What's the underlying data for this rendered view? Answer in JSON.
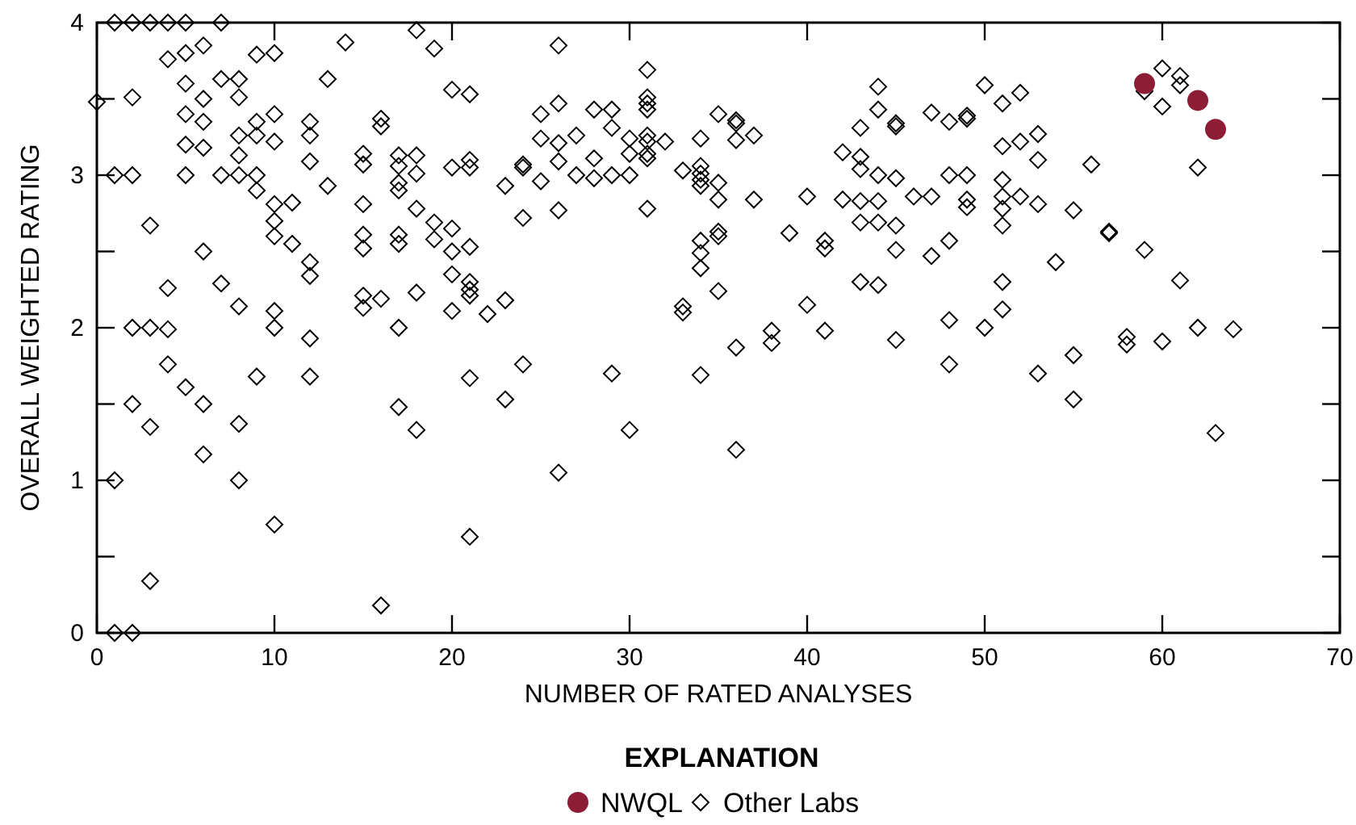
{
  "chart_data": {
    "type": "scatter",
    "xlabel": "NUMBER OF RATED ANALYSES",
    "ylabel": "OVERALL WEIGHTED RATING",
    "legend_title": "EXPLANATION",
    "legend": "bottom",
    "grid": false,
    "xlim": [
      0,
      70
    ],
    "xticks": [
      0,
      10,
      20,
      30,
      40,
      50,
      60,
      70
    ],
    "ylim": [
      0,
      4
    ],
    "yticks": [
      0,
      {
        "value": 0.5,
        "label": null
      },
      1,
      {
        "value": 1.5,
        "label": null
      },
      2,
      {
        "value": 2.5,
        "label": null
      },
      3,
      {
        "value": 3.5,
        "label": null
      },
      4
    ],
    "series": [
      {
        "name": "NWQL",
        "color": "#8c1d35",
        "marker": "circle",
        "x": [
          59,
          62,
          63
        ],
        "values": [
          3.6,
          3.49,
          3.3
        ]
      },
      {
        "name": "Other Labs",
        "color": "#000000",
        "marker": "diamond",
        "x": [
          0,
          1,
          1,
          1,
          1,
          2,
          2,
          2,
          2,
          2,
          2,
          3,
          3,
          3,
          3,
          3,
          4,
          4,
          4,
          4,
          4,
          5,
          5,
          5,
          5,
          5,
          5,
          5,
          6,
          6,
          6,
          6,
          6,
          6,
          6,
          7,
          7,
          7,
          7,
          8,
          8,
          8,
          8,
          8,
          8,
          8,
          8,
          9,
          9,
          9,
          9,
          9,
          9,
          10,
          10,
          10,
          10,
          10,
          10,
          10,
          10,
          10,
          11,
          11,
          12,
          12,
          12,
          12,
          12,
          12,
          12,
          13,
          13,
          14,
          15,
          15,
          15,
          15,
          15,
          15,
          15,
          16,
          16,
          16,
          16,
          17,
          17,
          17,
          17,
          17,
          17,
          17,
          17,
          18,
          18,
          18,
          18,
          18,
          18,
          19,
          19,
          19,
          20,
          20,
          20,
          20,
          20,
          20,
          21,
          21,
          21,
          21,
          21,
          21,
          21,
          21,
          21,
          22,
          23,
          23,
          23,
          24,
          24,
          24,
          24,
          25,
          25,
          25,
          26,
          26,
          26,
          26,
          26,
          26,
          27,
          27,
          28,
          28,
          28,
          29,
          29,
          29,
          29,
          30,
          30,
          30,
          30,
          31,
          31,
          31,
          31,
          31,
          31,
          31,
          31,
          31,
          32,
          33,
          33,
          33,
          34,
          34,
          34,
          34,
          34,
          34,
          34,
          34,
          34,
          35,
          35,
          35,
          35,
          35,
          35,
          36,
          36,
          36,
          36,
          36,
          37,
          37,
          38,
          38,
          39,
          40,
          40,
          41,
          41,
          41,
          42,
          42,
          43,
          43,
          43,
          43,
          43,
          43,
          44,
          44,
          44,
          44,
          44,
          44,
          45,
          45,
          45,
          45,
          45,
          45,
          46,
          47,
          47,
          47,
          48,
          48,
          48,
          48,
          48,
          49,
          49,
          49,
          49,
          49,
          50,
          50,
          51,
          51,
          51,
          51,
          51,
          51,
          51,
          51,
          52,
          52,
          52,
          53,
          53,
          53,
          53,
          54,
          55,
          55,
          55,
          56,
          57,
          57,
          58,
          58,
          59,
          59,
          60,
          60,
          60,
          61,
          61,
          61,
          62,
          62,
          63,
          64
        ],
        "values": [
          3.48,
          4,
          3.0,
          1.0,
          0,
          4,
          3.51,
          3.0,
          2.0,
          1.5,
          0,
          4,
          2.67,
          2.0,
          1.35,
          0.34,
          4,
          3.76,
          2.26,
          1.99,
          1.76,
          4,
          3.8,
          3.6,
          3.4,
          3.2,
          3.0,
          1.61,
          3.85,
          3.5,
          3.35,
          3.18,
          2.5,
          1.5,
          1.17,
          4,
          3.63,
          3.0,
          2.29,
          3.63,
          3.51,
          3.26,
          3.13,
          3.0,
          2.14,
          1.37,
          1.0,
          3.79,
          3.35,
          3.26,
          3.0,
          2.9,
          1.68,
          3.8,
          3.4,
          3.22,
          2.81,
          2.7,
          2.6,
          2.11,
          2.0,
          0.71,
          2.82,
          2.55,
          3.35,
          3.26,
          3.09,
          2.43,
          2.34,
          1.93,
          1.68,
          3.63,
          2.93,
          3.87,
          3.14,
          3.07,
          2.81,
          2.61,
          2.52,
          2.21,
          2.13,
          3.37,
          3.32,
          2.19,
          0.18,
          3.13,
          3.06,
          2.95,
          2.9,
          2.61,
          2.55,
          2.0,
          1.48,
          3.95,
          3.13,
          3.01,
          2.78,
          2.23,
          1.33,
          3.83,
          2.69,
          2.58,
          3.56,
          3.05,
          2.65,
          2.5,
          2.35,
          2.11,
          3.53,
          3.1,
          3.05,
          2.53,
          2.3,
          2.25,
          2.21,
          1.67,
          0.63,
          2.09,
          2.93,
          2.18,
          1.53,
          3.07,
          3.05,
          2.72,
          1.76,
          3.4,
          3.24,
          2.96,
          3.85,
          3.47,
          3.21,
          3.09,
          2.77,
          1.05,
          3.26,
          3.0,
          3.43,
          3.11,
          2.98,
          3.43,
          3.31,
          3.0,
          1.7,
          3.24,
          3.14,
          3.0,
          1.33,
          3.69,
          3.51,
          3.47,
          3.43,
          3.26,
          3.22,
          3.14,
          3.11,
          2.78,
          3.22,
          3.03,
          2.14,
          2.1,
          3.24,
          3.06,
          3.01,
          2.97,
          2.93,
          2.57,
          2.49,
          2.39,
          1.69,
          3.4,
          2.95,
          2.84,
          2.63,
          2.6,
          2.24,
          3.36,
          3.34,
          3.23,
          1.87,
          1.2,
          3.26,
          2.84,
          1.98,
          1.9,
          2.62,
          2.86,
          2.15,
          2.57,
          2.52,
          1.98,
          3.15,
          2.84,
          3.31,
          3.12,
          3.04,
          2.83,
          2.69,
          2.3,
          3.58,
          3.43,
          3.0,
          2.83,
          2.69,
          2.28,
          3.34,
          3.32,
          2.98,
          2.67,
          2.51,
          1.92,
          2.86,
          3.41,
          2.86,
          2.47,
          3.35,
          3.0,
          2.57,
          2.05,
          1.76,
          3.39,
          3.37,
          3.0,
          2.84,
          2.79,
          3.59,
          2.0,
          3.47,
          3.19,
          2.97,
          2.86,
          2.78,
          2.67,
          2.3,
          2.12,
          3.54,
          3.22,
          2.86,
          3.27,
          3.1,
          2.81,
          1.7,
          2.43,
          2.77,
          1.82,
          1.53,
          3.07,
          2.63,
          2.62,
          1.94,
          1.89,
          3.55,
          2.51,
          3.7,
          3.45,
          1.91,
          3.65,
          3.59,
          2.31,
          3.05,
          2.0,
          1.31,
          1.99
        ]
      }
    ]
  }
}
